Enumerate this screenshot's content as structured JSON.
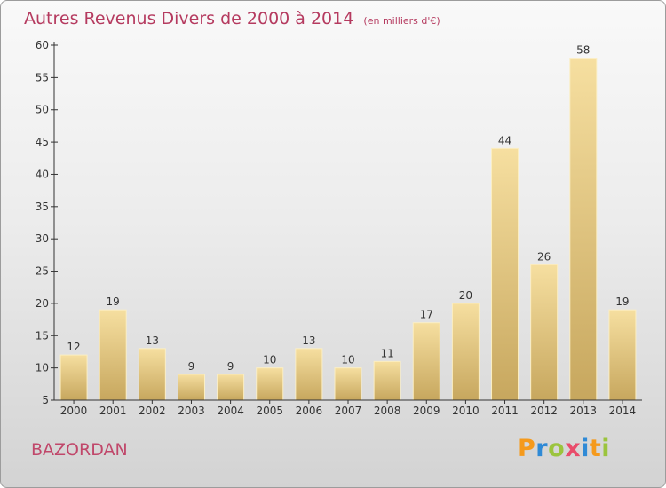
{
  "title": "Autres Revenus Divers de 2000 à 2014",
  "unit_note": "(en milliers d'€)",
  "place": "BAZORDAN",
  "logo": {
    "text": "Proxiti",
    "colors": [
      "#f59a1c",
      "#2f8ad6",
      "#9bc43d",
      "#e94c6b",
      "#2f8ad6",
      "#f59a1c",
      "#9bc43d"
    ]
  },
  "colors": {
    "title": "#b53a5f",
    "bar_light": "#f6dfa0",
    "bar_dark": "#c7a75e",
    "axis": "#333333",
    "label": "#333333"
  },
  "chart_data": {
    "type": "bar",
    "categories": [
      "2000",
      "2001",
      "2002",
      "2003",
      "2004",
      "2005",
      "2006",
      "2007",
      "2008",
      "2009",
      "2010",
      "2011",
      "2012",
      "2013",
      "2014"
    ],
    "values": [
      12,
      19,
      13,
      9,
      9,
      10,
      13,
      10,
      11,
      17,
      20,
      44,
      26,
      58,
      19
    ],
    "ylim": [
      5,
      60
    ],
    "yticks": [
      5,
      10,
      15,
      20,
      25,
      30,
      35,
      40,
      45,
      50,
      55,
      60
    ],
    "grid": false,
    "data_labels": true
  }
}
